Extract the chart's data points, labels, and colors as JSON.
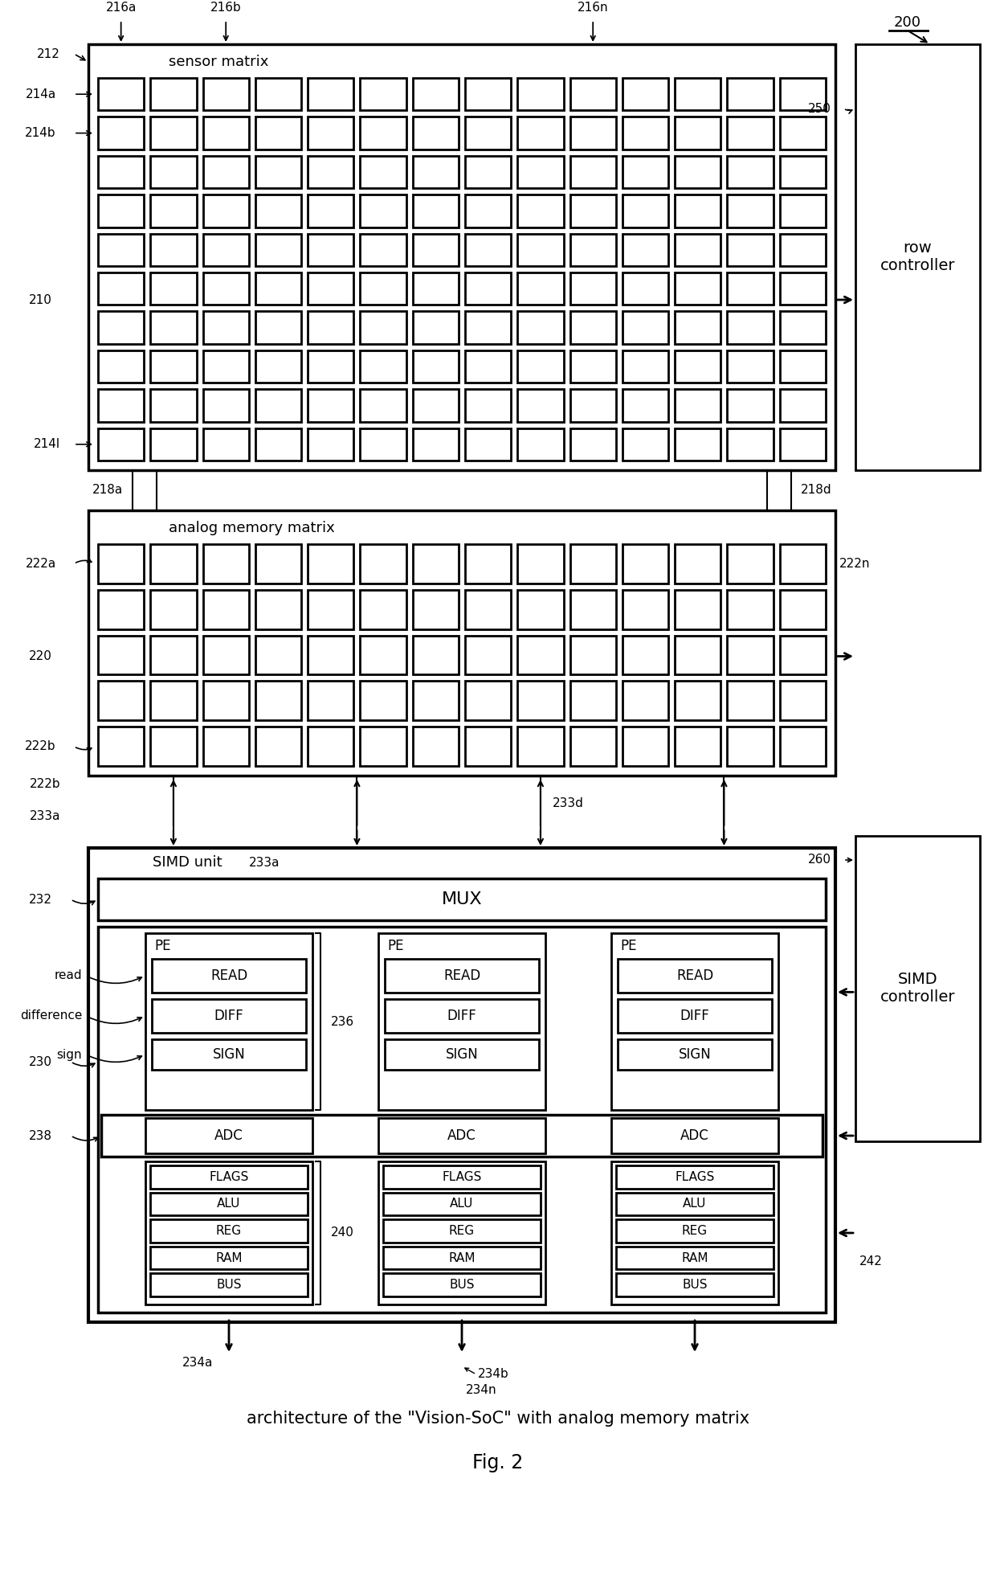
{
  "bg_color": "#ffffff",
  "title_caption": "architecture of the \"Vision-SoC\" with analog memory matrix",
  "fig_label": "Fig. 2",
  "fig_num": "200",
  "sensor_matrix_label": "sensor matrix",
  "analog_memory_label": "analog memory matrix",
  "simd_label": "SIMD unit",
  "mux_label": "MUX",
  "row_controller_label": "row\ncontroller",
  "simd_controller_label": "SIMD\ncontroller",
  "sensor_rows": 10,
  "sensor_cols": 14,
  "analog_rows": 5,
  "analog_cols": 14,
  "pe_blocks": [
    "PE",
    "READ",
    "DIFF",
    "SIGN"
  ],
  "lower_blocks": [
    "FLAGS",
    "ALU",
    "REG",
    "RAM",
    "BUS"
  ],
  "adc_label": "ADC"
}
